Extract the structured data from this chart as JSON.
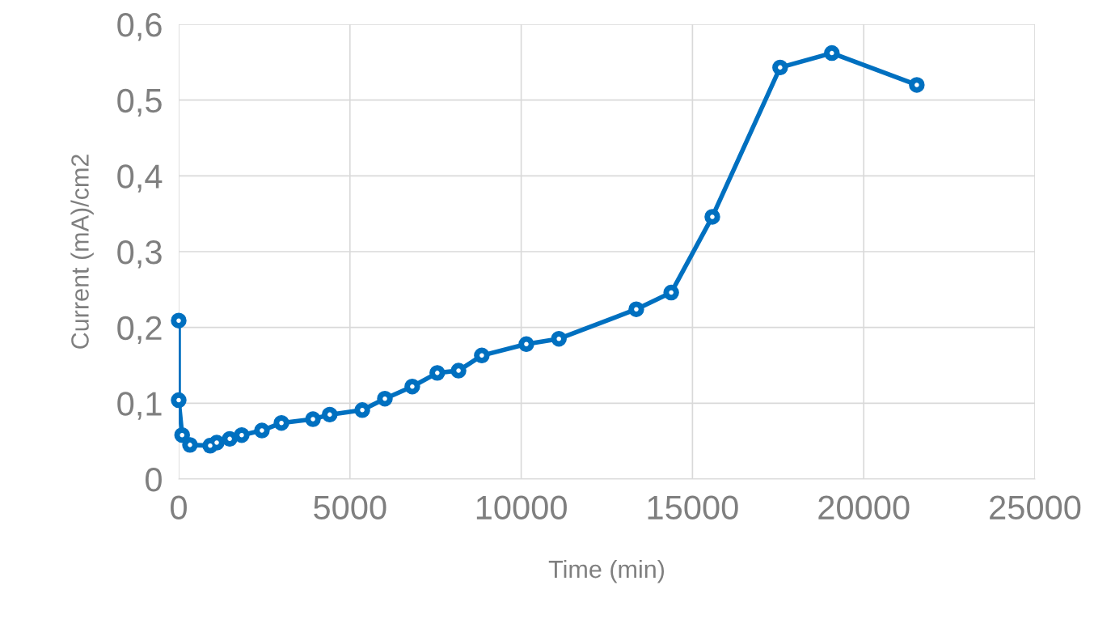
{
  "chart_data": {
    "type": "line",
    "xlabel": "Time (min)",
    "ylabel": "Current (mA)/cm2",
    "x": [
      0,
      0,
      100,
      330,
      920,
      1110,
      1490,
      1840,
      2430,
      3000,
      3920,
      4410,
      5360,
      6020,
      6820,
      7550,
      8170,
      8850,
      10150,
      11100,
      13360,
      14380,
      15580,
      17560,
      19070,
      21550
    ],
    "series": [
      {
        "color": "#0070c0",
        "values": [
          0.209,
          0.104,
          0.058,
          0.045,
          0.044,
          0.048,
          0.053,
          0.058,
          0.064,
          0.074,
          0.079,
          0.085,
          0.091,
          0.106,
          0.122,
          0.14,
          0.143,
          0.163,
          0.178,
          0.185,
          0.224,
          0.246,
          0.346,
          0.543,
          0.562,
          0.52
        ]
      }
    ],
    "xlim": [
      0,
      25000
    ],
    "xticks": [
      0,
      5000,
      10000,
      15000,
      20000,
      25000
    ],
    "ylim": [
      0,
      0.6
    ],
    "yticks": [
      {
        "value": 0,
        "label": "0"
      },
      {
        "value": 0.1,
        "label": "0,1"
      },
      {
        "value": 0.2,
        "label": "0,2"
      },
      {
        "value": 0.3,
        "label": "0,3"
      },
      {
        "value": 0.4,
        "label": "0,4"
      },
      {
        "value": 0.5,
        "label": "0,5"
      },
      {
        "value": 0.6,
        "label": "0,6"
      }
    ],
    "grid": true,
    "marker": "circle",
    "line_style": "solid"
  }
}
